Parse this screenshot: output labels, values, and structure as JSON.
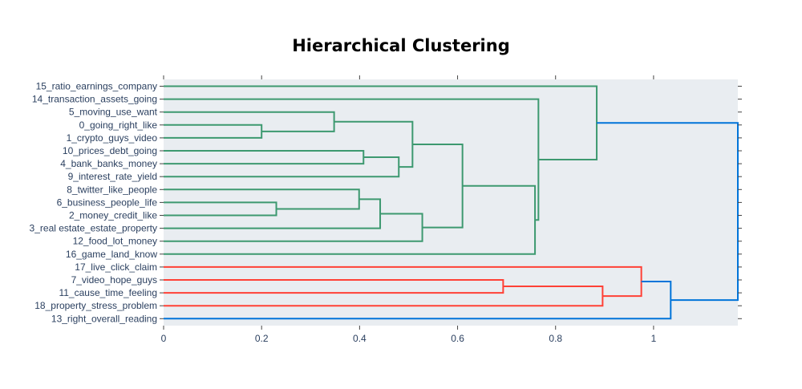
{
  "chart_data": {
    "type": "dendrogram",
    "title": "Hierarchical Clustering",
    "orientation": "horizontal",
    "xlim": [
      0,
      1.172
    ],
    "x_ticks": [
      0,
      0.2,
      0.4,
      0.6,
      0.8,
      1
    ],
    "x_tick_labels": [
      "0",
      "0.2",
      "0.4",
      "0.6",
      "0.8",
      "1"
    ],
    "grid": false,
    "leaves": [
      "15_ratio_earnings_company",
      "14_transaction_assets_going",
      "5_moving_use_want",
      "0_going_right_like",
      "1_crypto_guys_video",
      "10_prices_debt_going",
      "4_bank_banks_money",
      "9_interest_rate_yield",
      "8_twitter_like_people",
      "6_business_people_life",
      "2_money_credit_like",
      "3_real estate_estate_property",
      "12_food_lot_money",
      "16_game_land_know",
      "17_live_click_claim",
      "7_video_hope_guys",
      "11_cause_time_feeling",
      "18_property_stress_problem",
      "13_right_overall_reading"
    ],
    "colors": {
      "green": "#3d9970",
      "red": "#ff4136",
      "blue": "#0074d9",
      "plot_bg": "#e9edf1"
    },
    "merges": [
      {
        "a": "L3",
        "b": "L4",
        "height": 0.2,
        "color": "green"
      },
      {
        "a": "L9",
        "b": "L10",
        "height": 0.23,
        "color": "green"
      },
      {
        "a": "L2",
        "b": "N0",
        "height": 0.348,
        "color": "green"
      },
      {
        "a": "L8",
        "b": "N1",
        "height": 0.399,
        "color": "green"
      },
      {
        "a": "L5",
        "b": "L6",
        "height": 0.408,
        "color": "green"
      },
      {
        "a": "L11",
        "b": "N3",
        "height": 0.442,
        "color": "green"
      },
      {
        "a": "N4",
        "b": "L7",
        "height": 0.48,
        "color": "green"
      },
      {
        "a": "N2",
        "b": "N6",
        "height": 0.508,
        "color": "green"
      },
      {
        "a": "L12",
        "b": "N5",
        "height": 0.528,
        "color": "green"
      },
      {
        "a": "N7",
        "b": "N8",
        "height": 0.61,
        "color": "green"
      },
      {
        "a": "L16",
        "b": "L15",
        "height": 0.693,
        "color": "red"
      },
      {
        "a": "N9",
        "b": "L13",
        "height": 0.758,
        "color": "green"
      },
      {
        "a": "L1",
        "b": "N11",
        "height": 0.765,
        "color": "green"
      },
      {
        "a": "L0",
        "b": "N12",
        "height": 0.884,
        "color": "green"
      },
      {
        "a": "N10",
        "b": "L17",
        "height": 0.896,
        "color": "red"
      },
      {
        "a": "L14",
        "b": "N14",
        "height": 0.975,
        "color": "red"
      },
      {
        "a": "N15",
        "b": "L18",
        "height": 1.035,
        "color": "blue"
      },
      {
        "a": "N13",
        "b": "N16",
        "height": 1.172,
        "color": "blue"
      }
    ]
  }
}
